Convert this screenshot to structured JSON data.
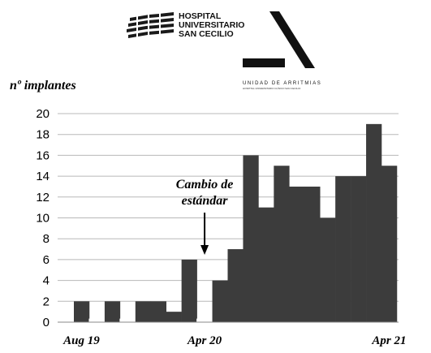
{
  "logos": {
    "hospital": {
      "line1": "HOSPITAL",
      "line2": "UNIVERSITARIO",
      "line3": "SAN CECILIO"
    },
    "unit": {
      "line1": "UNIDAD DE ARRITMIAS",
      "line2": "HOSPITAL UNIVERSITARIO CLÍNICO SAN CECILIO"
    }
  },
  "chart_data": {
    "type": "bar",
    "ylabel": "nº implantes",
    "xlabel": "",
    "title": "",
    "ylim": [
      0,
      20
    ],
    "yticks": [
      0,
      2,
      4,
      6,
      8,
      10,
      12,
      14,
      16,
      18,
      20
    ],
    "grid": true,
    "x_tick_labels": [
      {
        "label": "Aug 19",
        "at_bar": 0
      },
      {
        "label": "Apr 20",
        "at_bar": 8
      },
      {
        "label": "Apr 21",
        "at_bar": 20
      }
    ],
    "values": [
      2,
      0.3,
      2,
      0.3,
      2,
      2,
      1,
      6,
      0.3,
      4,
      7,
      16,
      11,
      15,
      13,
      13,
      10,
      14,
      14,
      19,
      15
    ],
    "bar_colors": {
      "dark": "#3c3c3c",
      "white": "#ffffff"
    },
    "bar_fill": [
      "dark",
      "white",
      "dark",
      "white",
      "dark",
      "dark",
      "dark",
      "dark",
      "white",
      "dark",
      "dark",
      "dark",
      "dark",
      "dark",
      "dark",
      "dark",
      "dark",
      "dark",
      "dark",
      "dark",
      "dark"
    ],
    "annotation": {
      "line1": "Cambio de",
      "line2": "estándar",
      "target_bar": 8
    }
  }
}
